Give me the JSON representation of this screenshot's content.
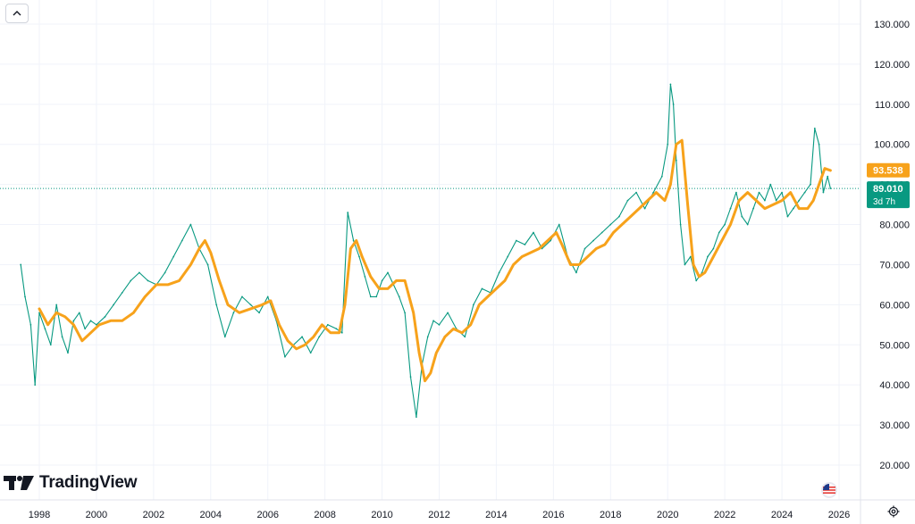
{
  "branding": {
    "logo_text": "TradingView"
  },
  "chart_data": {
    "type": "line",
    "title": "",
    "xlabel": "",
    "ylabel": "",
    "ylim": [
      15,
      135
    ],
    "xlim": [
      1997.0,
      2026.6
    ],
    "y_ticks": [
      "130.000",
      "120.000",
      "110.000",
      "100.000",
      "90.000",
      "80.000",
      "70.000",
      "60.000",
      "50.000",
      "40.000",
      "30.000",
      "20.000"
    ],
    "y_tick_values": [
      130,
      120,
      110,
      100,
      90,
      80,
      70,
      60,
      50,
      40,
      30,
      20
    ],
    "x_ticks": [
      "1998",
      "2000",
      "2002",
      "2004",
      "2006",
      "2008",
      "2010",
      "2012",
      "2014",
      "2016",
      "2018",
      "2020",
      "2022",
      "2024",
      "2026"
    ],
    "x_tick_values": [
      1998,
      2000,
      2002,
      2004,
      2006,
      2008,
      2010,
      2012,
      2014,
      2016,
      2018,
      2020,
      2022,
      2024,
      2026
    ],
    "grid": true,
    "series": [
      {
        "color": "#089981",
        "x": [
          1997.35,
          1997.5,
          1997.7,
          1997.85,
          1998.0,
          1998.2,
          1998.4,
          1998.6,
          1998.8,
          1999.0,
          1999.2,
          1999.4,
          1999.6,
          1999.8,
          2000.0,
          2000.3,
          2000.6,
          2000.9,
          2001.2,
          2001.5,
          2001.8,
          2002.1,
          2002.4,
          2002.7,
          2003.0,
          2003.3,
          2003.6,
          2003.9,
          2004.2,
          2004.5,
          2004.8,
          2005.1,
          2005.4,
          2005.7,
          2006.0,
          2006.3,
          2006.6,
          2006.9,
          2007.2,
          2007.5,
          2007.8,
          2008.1,
          2008.4,
          2008.6,
          2008.8,
          2009.0,
          2009.2,
          2009.4,
          2009.6,
          2009.8,
          2010.0,
          2010.2,
          2010.4,
          2010.6,
          2010.8,
          2011.0,
          2011.2,
          2011.4,
          2011.6,
          2011.8,
          2012.0,
          2012.3,
          2012.6,
          2012.9,
          2013.2,
          2013.5,
          2013.8,
          2014.1,
          2014.4,
          2014.7,
          2015.0,
          2015.3,
          2015.6,
          2015.9,
          2016.2,
          2016.5,
          2016.8,
          2017.1,
          2017.4,
          2017.7,
          2018.0,
          2018.3,
          2018.6,
          2018.9,
          2019.2,
          2019.5,
          2019.8,
          2020.0,
          2020.1,
          2020.2,
          2020.3,
          2020.45,
          2020.6,
          2020.8,
          2021.0,
          2021.2,
          2021.4,
          2021.6,
          2021.8,
          2022.0,
          2022.2,
          2022.4,
          2022.6,
          2022.8,
          2023.0,
          2023.2,
          2023.4,
          2023.6,
          2023.8,
          2024.0,
          2024.2,
          2024.4,
          2024.6,
          2024.8,
          2025.0,
          2025.15,
          2025.3,
          2025.45,
          2025.6,
          2025.7
        ],
        "values": [
          70,
          62,
          55,
          40,
          58,
          54,
          50,
          60,
          52,
          48,
          56,
          58,
          54,
          56,
          55,
          57,
          60,
          63,
          66,
          68,
          66,
          65,
          68,
          72,
          76,
          80,
          74,
          70,
          60,
          52,
          58,
          62,
          60,
          58,
          62,
          56,
          47,
          50,
          52,
          48,
          52,
          55,
          54,
          53,
          83,
          76,
          72,
          67,
          62,
          62,
          66,
          68,
          65,
          62,
          58,
          42,
          32,
          45,
          52,
          56,
          55,
          58,
          54,
          52,
          60,
          64,
          63,
          68,
          72,
          76,
          75,
          78,
          74,
          76,
          80,
          72,
          68,
          74,
          76,
          78,
          80,
          82,
          86,
          88,
          84,
          88,
          92,
          100,
          115,
          110,
          96,
          80,
          70,
          72,
          66,
          68,
          72,
          74,
          78,
          80,
          84,
          88,
          82,
          80,
          84,
          88,
          86,
          90,
          86,
          88,
          82,
          84,
          86,
          88,
          90,
          104,
          100,
          88,
          92,
          89
        ]
      },
      {
        "color": "#f7a21b",
        "x": [
          1998.0,
          1998.3,
          1998.6,
          1998.9,
          1999.2,
          1999.5,
          1999.8,
          2000.1,
          2000.5,
          2000.9,
          2001.3,
          2001.7,
          2002.1,
          2002.5,
          2002.9,
          2003.3,
          2003.6,
          2003.8,
          2004.0,
          2004.3,
          2004.6,
          2005.0,
          2005.4,
          2005.8,
          2006.1,
          2006.4,
          2006.7,
          2007.0,
          2007.3,
          2007.6,
          2007.9,
          2008.2,
          2008.5,
          2008.7,
          2008.9,
          2009.1,
          2009.3,
          2009.6,
          2009.9,
          2010.2,
          2010.5,
          2010.8,
          2011.1,
          2011.3,
          2011.5,
          2011.7,
          2011.9,
          2012.2,
          2012.5,
          2012.8,
          2013.1,
          2013.4,
          2013.7,
          2014.0,
          2014.3,
          2014.6,
          2014.9,
          2015.2,
          2015.5,
          2015.8,
          2016.1,
          2016.3,
          2016.6,
          2016.9,
          2017.2,
          2017.5,
          2017.8,
          2018.1,
          2018.4,
          2018.7,
          2019.0,
          2019.3,
          2019.6,
          2019.9,
          2020.1,
          2020.3,
          2020.5,
          2020.7,
          2020.9,
          2021.1,
          2021.3,
          2021.6,
          2021.9,
          2022.2,
          2022.5,
          2022.8,
          2023.1,
          2023.4,
          2023.7,
          2024.0,
          2024.3,
          2024.6,
          2024.9,
          2025.1,
          2025.3,
          2025.5,
          2025.7
        ],
        "values": [
          59,
          55,
          58,
          57,
          55,
          51,
          53,
          55,
          56,
          56,
          58,
          62,
          65,
          65,
          66,
          70,
          74,
          76,
          73,
          66,
          60,
          58,
          59,
          60,
          61,
          55,
          51,
          49,
          50,
          52,
          55,
          53,
          53,
          60,
          74,
          76,
          72,
          67,
          64,
          64,
          66,
          66,
          58,
          48,
          41,
          43,
          48,
          52,
          54,
          53,
          55,
          60,
          62,
          64,
          66,
          70,
          72,
          73,
          74,
          76,
          78,
          75,
          70,
          70,
          72,
          74,
          75,
          78,
          80,
          82,
          84,
          86,
          88,
          86,
          90,
          100,
          101,
          85,
          70,
          67,
          68,
          72,
          76,
          80,
          86,
          88,
          86,
          84,
          85,
          86,
          88,
          84,
          84,
          86,
          90,
          94,
          93.5
        ]
      }
    ],
    "price_labels": [
      {
        "value": 93.538,
        "text": "93.538",
        "color": "#f7a21b"
      },
      {
        "value": 89.01,
        "text": "89.010",
        "sub": "3d 7h",
        "color": "#089981"
      }
    ]
  },
  "icons": {
    "collapse": "chevron-up-icon",
    "logo": "tradingview-logo-icon",
    "flag": "us-flag-icon",
    "settings": "gear-icon"
  }
}
